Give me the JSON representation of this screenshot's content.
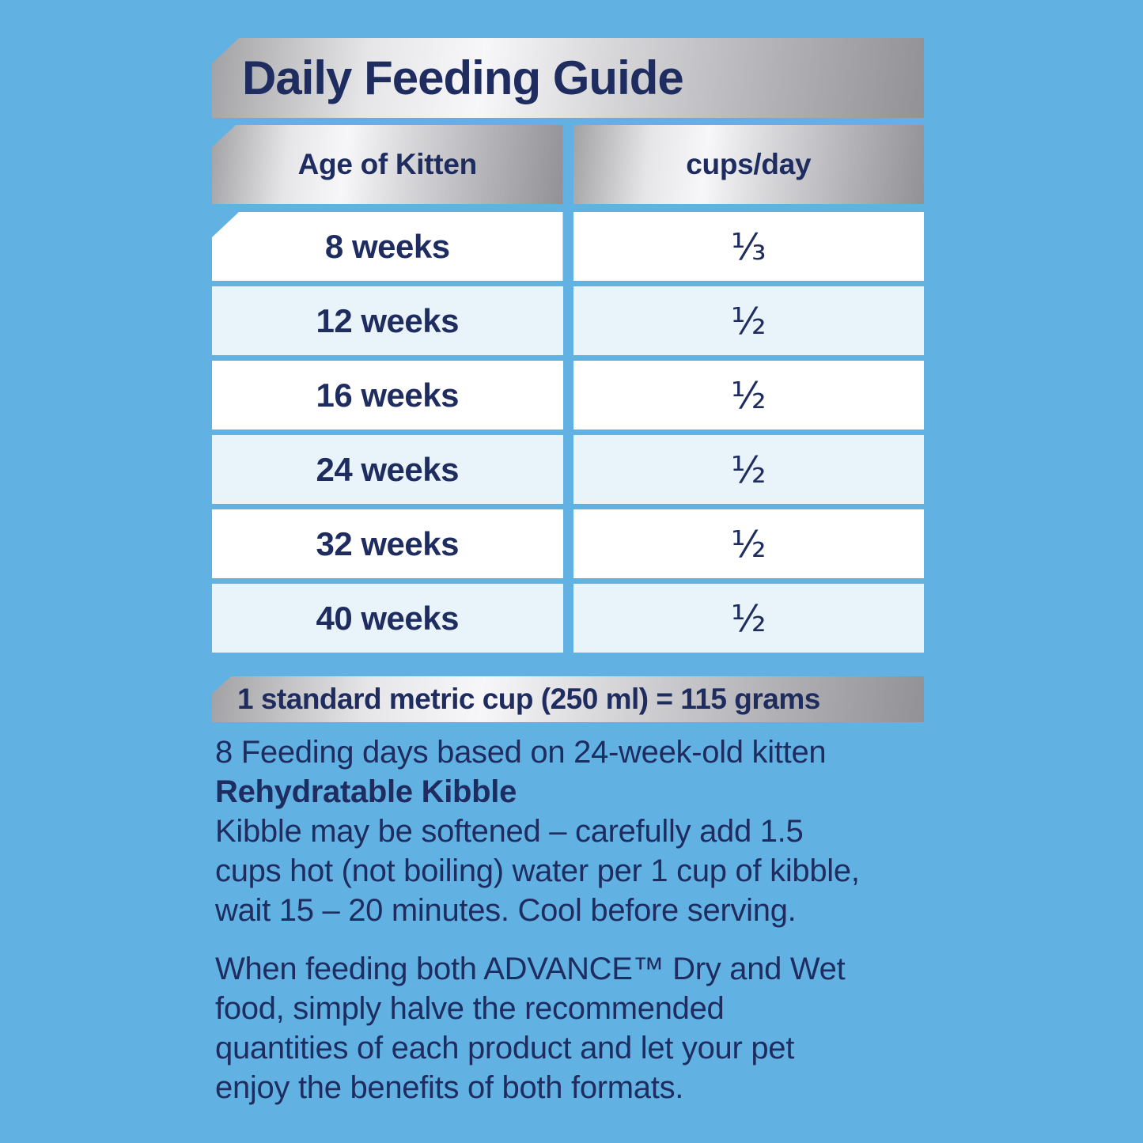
{
  "page": {
    "background_color": "#62B1E3",
    "text_color": "#1E2C5F",
    "row_alt_color": "#E8F3FA",
    "silver_light": "#F7F7F9",
    "silver_dark": "#929296"
  },
  "title": "Daily Feeding Guide",
  "table": {
    "columns": [
      "Age of Kitten",
      "cups/day"
    ],
    "rows": [
      {
        "age": "8 weeks",
        "cups": "⅓"
      },
      {
        "age": "12 weeks",
        "cups": "½"
      },
      {
        "age": "16 weeks",
        "cups": "½"
      },
      {
        "age": "24 weeks",
        "cups": "½"
      },
      {
        "age": "32 weeks",
        "cups": "½"
      },
      {
        "age": "40 weeks",
        "cups": "½"
      }
    ]
  },
  "cup_note": "1 standard metric cup (250 ml) = 115 grams",
  "notes": {
    "feeding_days": "8 Feeding days based on 24-week-old kitten",
    "rehydratable_heading": "Rehydratable Kibble",
    "rehydratable_lines": [
      "Kibble may be softened – carefully add 1.5",
      "cups hot (not boiling) water per 1 cup of kibble,",
      "wait 15 – 20 minutes.  Cool before serving."
    ],
    "combo_lines": [
      "When feeding both ADVANCE™ Dry and Wet",
      "food, simply halve the recommended",
      "quantities of each product and let your pet",
      "enjoy the benefits of both formats."
    ]
  }
}
